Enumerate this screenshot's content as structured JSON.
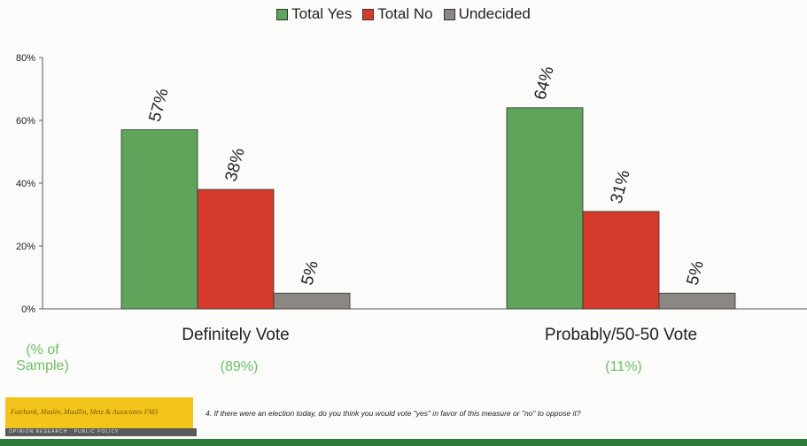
{
  "chart_data": {
    "type": "bar",
    "categories": [
      "Definitely Vote",
      "Probably/50-50 Vote"
    ],
    "series": [
      {
        "name": "Total Yes",
        "color": "#5fa45b",
        "values": [
          57,
          64
        ],
        "labels": [
          "57%",
          "64%"
        ]
      },
      {
        "name": "Total No",
        "color": "#d63a2a",
        "values": [
          38,
          31
        ],
        "labels": [
          "38%",
          "31%"
        ]
      },
      {
        "name": "Undecided",
        "color": "#8b8782",
        "values": [
          5,
          5
        ],
        "labels": [
          "5%",
          "5%"
        ]
      }
    ],
    "ylim": [
      0,
      80
    ],
    "yticks": [
      "0%",
      "20%",
      "40%",
      "60%",
      "80%"
    ],
    "grid": false,
    "legend_position": "top-center"
  },
  "sample": {
    "label": "(% of Sample)",
    "values": [
      "(89%)",
      "(11%)"
    ]
  },
  "footer": {
    "logo_text": "Fairbank, Maslin, Maullin, Metz & Associates FM3",
    "logo_subtext": "OPINION RESEARCH · PUBLIC POLICY",
    "question": "4. If there were an election today, do you think you would vote \"yes\" in favor of this measure or \"no\" to oppose it?"
  }
}
